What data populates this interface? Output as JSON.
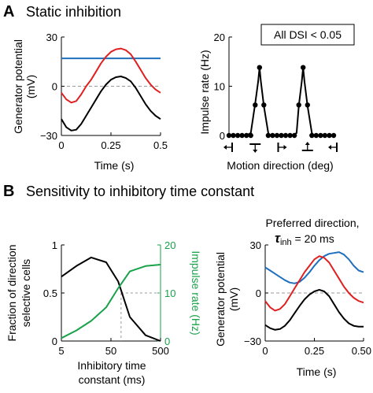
{
  "panel_A": {
    "letter": "A",
    "title": "Static inhibition",
    "dsi_note": "All DSI < 0.05"
  },
  "panel_B": {
    "letter": "B",
    "title": "Sensitivity to inhibitory time constant",
    "pref_title_line1": "Preferred direction,",
    "pref_title_tau": "τ",
    "pref_title_sub": "inh",
    "pref_title_rest": " = 20 ms"
  },
  "colors": {
    "black": "#000000",
    "red": "#e02020",
    "blue": "#1f6fbf",
    "green": "#19a24a",
    "dashed": "#999999"
  },
  "chart_data": [
    {
      "id": "A_left",
      "type": "line",
      "xlabel": "Time (s)",
      "ylabel_line1": "Generator potential",
      "ylabel_line2": "(mV)",
      "xlim": [
        0,
        0.5
      ],
      "ylim": [
        -30,
        30
      ],
      "x_ticks": [
        0,
        0.25,
        0.5
      ],
      "x_tick_labels": [
        "0",
        "0.25",
        "0.5"
      ],
      "y_ticks": [
        -30,
        0,
        30
      ],
      "y_tick_labels": [
        "−30",
        "0",
        "30"
      ],
      "zero_line": true,
      "series": [
        {
          "color": "blue",
          "points": [
            [
              0,
              17
            ],
            [
              0.5,
              17
            ]
          ]
        },
        {
          "color": "red",
          "points": [
            [
              0,
              -4
            ],
            [
              0.025,
              -8
            ],
            [
              0.05,
              -10
            ],
            [
              0.075,
              -9
            ],
            [
              0.1,
              -5
            ],
            [
              0.125,
              0
            ],
            [
              0.15,
              4
            ],
            [
              0.175,
              9
            ],
            [
              0.2,
              14
            ],
            [
              0.225,
              18
            ],
            [
              0.25,
              21
            ],
            [
              0.275,
              22.5
            ],
            [
              0.3,
              23
            ],
            [
              0.325,
              22
            ],
            [
              0.35,
              19.5
            ],
            [
              0.375,
              15
            ],
            [
              0.4,
              10
            ],
            [
              0.425,
              5
            ],
            [
              0.45,
              1
            ],
            [
              0.475,
              -2
            ],
            [
              0.5,
              -4
            ]
          ]
        },
        {
          "color": "black",
          "points": [
            [
              0,
              -20
            ],
            [
              0.025,
              -25
            ],
            [
              0.05,
              -27
            ],
            [
              0.075,
              -26.5
            ],
            [
              0.1,
              -23
            ],
            [
              0.125,
              -18
            ],
            [
              0.15,
              -13
            ],
            [
              0.175,
              -8
            ],
            [
              0.2,
              -3
            ],
            [
              0.225,
              1
            ],
            [
              0.25,
              4
            ],
            [
              0.275,
              5.5
            ],
            [
              0.3,
              6
            ],
            [
              0.325,
              5
            ],
            [
              0.35,
              3
            ],
            [
              0.375,
              -1
            ],
            [
              0.4,
              -6
            ],
            [
              0.425,
              -11
            ],
            [
              0.45,
              -15
            ],
            [
              0.475,
              -18
            ],
            [
              0.5,
              -20
            ]
          ]
        }
      ]
    },
    {
      "id": "A_right",
      "type": "line",
      "xlabel": "Motion direction (deg)",
      "ylabel": "Impulse rate (Hz)",
      "ylim": [
        0,
        20
      ],
      "y_ticks": [
        0,
        10,
        20
      ],
      "y_tick_labels": [
        "0",
        "10",
        "20"
      ],
      "direction_glyphs": [
        "left-arrow",
        "down-arrow",
        "right-arrow",
        "up-arrow",
        "left-arrow"
      ],
      "series": [
        {
          "color": "black",
          "curve": [
            [
              0,
              0
            ],
            [
              4,
              0
            ],
            [
              5,
              0.5
            ],
            [
              6,
              6.5
            ],
            [
              6.7,
              11
            ],
            [
              7,
              13.8
            ],
            [
              7.3,
              11
            ],
            [
              8,
              6
            ],
            [
              9,
              0.5
            ],
            [
              9.5,
              0
            ],
            [
              14.5,
              0
            ],
            [
              15.5,
              0.5
            ],
            [
              16,
              6
            ],
            [
              16.7,
              11
            ],
            [
              17,
              13.8
            ],
            [
              17.3,
              11
            ],
            [
              18,
              6
            ],
            [
              19,
              0.5
            ],
            [
              19.5,
              0
            ],
            [
              24,
              0
            ]
          ],
          "markers": [
            [
              0,
              0
            ],
            [
              1,
              0
            ],
            [
              2,
              0
            ],
            [
              3,
              0
            ],
            [
              4,
              0
            ],
            [
              5,
              0
            ],
            [
              6,
              6.2
            ],
            [
              7,
              13.8
            ],
            [
              8,
              6.2
            ],
            [
              9,
              0
            ],
            [
              10,
              0
            ],
            [
              11,
              0
            ],
            [
              12,
              0
            ],
            [
              13,
              0
            ],
            [
              14,
              0
            ],
            [
              15,
              0
            ],
            [
              16,
              6.2
            ],
            [
              17,
              13.8
            ],
            [
              18,
              6.2
            ],
            [
              19,
              0
            ],
            [
              20,
              0
            ],
            [
              21,
              0
            ],
            [
              22,
              0
            ],
            [
              23,
              0
            ],
            [
              24,
              0
            ]
          ]
        }
      ]
    },
    {
      "id": "B_left",
      "type": "line",
      "xlabel_line1": "Inhibitory time",
      "xlabel_line2": "constant (ms)",
      "ylabel_left_lines": [
        "Fraction of direction",
        "selective cells"
      ],
      "ylabel_right": "Impulse rate (Hz)",
      "x_scale": "log",
      "xlim": [
        5,
        500
      ],
      "x_ticks": [
        5,
        50,
        500
      ],
      "x_tick_labels": [
        "5",
        "50",
        "500"
      ],
      "ylim_left": [
        0,
        1
      ],
      "y_ticks_left": [
        0,
        0.5,
        1
      ],
      "y_tick_labels_left": [
        "0",
        "0.5",
        "1"
      ],
      "ylim_right": [
        0,
        20
      ],
      "y_ticks_right": [
        0,
        10,
        20
      ],
      "y_tick_labels_right": [
        "0",
        "10",
        "20"
      ],
      "series": [
        {
          "color": "black",
          "axis": "left",
          "x": [
            5,
            10,
            20,
            40,
            70,
            120,
            250,
            500
          ],
          "y": [
            0.67,
            0.78,
            0.87,
            0.82,
            0.62,
            0.25,
            0.06,
            0.0
          ]
        },
        {
          "color": "green",
          "axis": "right",
          "x": [
            5,
            10,
            20,
            40,
            70,
            120,
            250,
            500
          ],
          "y": [
            0.6,
            2.2,
            4.2,
            7.0,
            11.0,
            14.5,
            15.6,
            15.9
          ]
        }
      ],
      "guide": {
        "x": 80,
        "y_left": 0.5
      }
    },
    {
      "id": "B_right",
      "type": "line",
      "xlabel": "Time (s)",
      "ylabel_line1": "Generator potential",
      "ylabel_line2": "(mV)",
      "xlim": [
        0,
        0.5
      ],
      "ylim": [
        -30,
        30
      ],
      "x_ticks": [
        0,
        0.25,
        0.5
      ],
      "x_tick_labels": [
        "0",
        "0.25",
        "0.50"
      ],
      "y_ticks": [
        -30,
        0,
        30
      ],
      "y_tick_labels": [
        "−30",
        "0",
        "30"
      ],
      "zero_line": true,
      "series": [
        {
          "color": "blue",
          "points": [
            [
              0,
              16
            ],
            [
              0.025,
              14
            ],
            [
              0.05,
              12
            ],
            [
              0.075,
              10
            ],
            [
              0.1,
              8
            ],
            [
              0.125,
              6.5
            ],
            [
              0.15,
              6
            ],
            [
              0.175,
              7
            ],
            [
              0.2,
              9.5
            ],
            [
              0.225,
              13
            ],
            [
              0.25,
              17
            ],
            [
              0.275,
              20.5
            ],
            [
              0.3,
              23
            ],
            [
              0.325,
              24.5
            ],
            [
              0.35,
              25
            ],
            [
              0.375,
              25.5
            ],
            [
              0.4,
              24
            ],
            [
              0.425,
              21
            ],
            [
              0.45,
              17
            ],
            [
              0.475,
              14
            ],
            [
              0.5,
              13
            ]
          ]
        },
        {
          "color": "red",
          "points": [
            [
              0,
              -5
            ],
            [
              0.025,
              -9
            ],
            [
              0.05,
              -11
            ],
            [
              0.075,
              -10
            ],
            [
              0.1,
              -7
            ],
            [
              0.125,
              -2
            ],
            [
              0.15,
              3
            ],
            [
              0.175,
              8
            ],
            [
              0.2,
              13
            ],
            [
              0.225,
              17
            ],
            [
              0.25,
              21
            ],
            [
              0.275,
              23
            ],
            [
              0.3,
              22
            ],
            [
              0.325,
              19
            ],
            [
              0.35,
              14
            ],
            [
              0.375,
              9
            ],
            [
              0.4,
              4
            ],
            [
              0.425,
              0
            ],
            [
              0.45,
              -3
            ],
            [
              0.475,
              -5
            ],
            [
              0.5,
              -6
            ]
          ]
        },
        {
          "color": "black",
          "points": [
            [
              0,
              -20
            ],
            [
              0.025,
              -22
            ],
            [
              0.05,
              -23
            ],
            [
              0.075,
              -22.5
            ],
            [
              0.1,
              -20.5
            ],
            [
              0.125,
              -17
            ],
            [
              0.15,
              -12.5
            ],
            [
              0.175,
              -8
            ],
            [
              0.2,
              -4
            ],
            [
              0.225,
              -1
            ],
            [
              0.25,
              1
            ],
            [
              0.275,
              2
            ],
            [
              0.3,
              1
            ],
            [
              0.325,
              -2
            ],
            [
              0.35,
              -7
            ],
            [
              0.375,
              -12
            ],
            [
              0.4,
              -16
            ],
            [
              0.425,
              -19
            ],
            [
              0.45,
              -20.5
            ],
            [
              0.475,
              -21
            ],
            [
              0.5,
              -21
            ]
          ]
        }
      ]
    }
  ]
}
